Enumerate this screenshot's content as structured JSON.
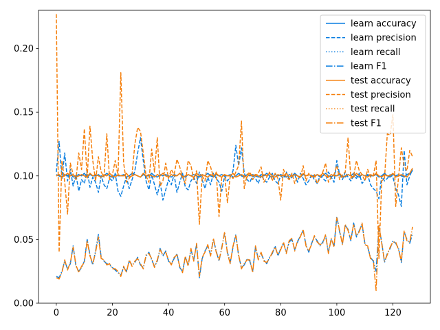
{
  "chart_data": {
    "type": "line",
    "title": "",
    "xlabel": "",
    "ylabel": "",
    "xlim": [
      -6.35,
      133.35
    ],
    "ylim": [
      0,
      0.23
    ],
    "x_ticks": [
      0,
      20,
      40,
      60,
      80,
      100,
      120
    ],
    "y_ticks": [
      0.0,
      0.05,
      0.1,
      0.15,
      0.2
    ],
    "x_tick_labels": [
      "0",
      "20",
      "40",
      "60",
      "80",
      "100",
      "120"
    ],
    "y_tick_labels": [
      "0.00",
      "0.05",
      "0.10",
      "0.15",
      "0.20"
    ],
    "grid": false,
    "legend_position": "top-right",
    "x": [
      0,
      1,
      2,
      3,
      4,
      5,
      6,
      7,
      8,
      9,
      10,
      11,
      12,
      13,
      14,
      15,
      16,
      17,
      18,
      19,
      20,
      21,
      22,
      23,
      24,
      25,
      26,
      27,
      28,
      29,
      30,
      31,
      32,
      33,
      34,
      35,
      36,
      37,
      38,
      39,
      40,
      41,
      42,
      43,
      44,
      45,
      46,
      47,
      48,
      49,
      50,
      51,
      52,
      53,
      54,
      55,
      56,
      57,
      58,
      59,
      60,
      61,
      62,
      63,
      64,
      65,
      66,
      67,
      68,
      69,
      70,
      71,
      72,
      73,
      74,
      75,
      76,
      77,
      78,
      79,
      80,
      81,
      82,
      83,
      84,
      85,
      86,
      87,
      88,
      89,
      90,
      91,
      92,
      93,
      94,
      95,
      96,
      97,
      98,
      99,
      100,
      101,
      102,
      103,
      104,
      105,
      106,
      107,
      108,
      109,
      110,
      111,
      112,
      113,
      114,
      115,
      116,
      117,
      118,
      119,
      120,
      121,
      122,
      123,
      124,
      125,
      126,
      127
    ],
    "series": [
      {
        "name": "learn accuracy",
        "color": "#0a7ee0",
        "dash": "solid",
        "values": [
          0.101,
          0.1,
          0.099,
          0.101,
          0.1,
          0.102,
          0.099,
          0.1,
          0.101,
          0.1,
          0.102,
          0.099,
          0.101,
          0.1,
          0.1,
          0.101,
          0.099,
          0.1,
          0.102,
          0.1,
          0.099,
          0.101,
          0.1,
          0.1,
          0.101,
          0.099,
          0.1,
          0.102,
          0.101,
          0.1,
          0.099,
          0.101,
          0.1,
          0.1,
          0.102,
          0.1,
          0.099,
          0.101,
          0.1,
          0.101,
          0.1,
          0.099,
          0.101,
          0.1,
          0.102,
          0.1,
          0.099,
          0.101,
          0.1,
          0.101,
          0.1,
          0.099,
          0.101,
          0.1,
          0.102,
          0.1,
          0.099,
          0.101,
          0.1,
          0.101,
          0.1,
          0.1,
          0.101,
          0.099,
          0.1,
          0.102,
          0.1,
          0.099,
          0.101,
          0.1,
          0.101,
          0.1,
          0.099,
          0.101,
          0.1,
          0.102,
          0.1,
          0.099,
          0.101,
          0.1,
          0.101,
          0.1,
          0.099,
          0.101,
          0.1,
          0.102,
          0.1,
          0.099,
          0.101,
          0.1,
          0.101,
          0.1,
          0.1,
          0.101,
          0.099,
          0.1,
          0.102,
          0.1,
          0.099,
          0.101,
          0.1,
          0.101,
          0.1,
          0.099,
          0.101,
          0.1,
          0.102,
          0.1,
          0.099,
          0.101,
          0.1,
          0.101,
          0.1,
          0.1,
          0.101,
          0.099,
          0.1,
          0.102,
          0.1,
          0.099,
          0.101,
          0.1,
          0.101,
          0.1,
          0.099,
          0.101,
          0.102,
          0.104
        ]
      },
      {
        "name": "learn precision",
        "color": "#0a7ee0",
        "dash": "dashed",
        "values": [
          0.103,
          0.127,
          0.098,
          0.118,
          0.096,
          0.105,
          0.092,
          0.101,
          0.088,
          0.097,
          0.094,
          0.104,
          0.091,
          0.099,
          0.095,
          0.087,
          0.1,
          0.093,
          0.09,
          0.098,
          0.096,
          0.102,
          0.088,
          0.084,
          0.092,
          0.099,
          0.09,
          0.097,
          0.104,
          0.118,
          0.13,
          0.112,
          0.096,
          0.089,
          0.101,
          0.093,
          0.085,
          0.095,
          0.081,
          0.089,
          0.097,
          0.093,
          0.101,
          0.087,
          0.095,
          0.102,
          0.091,
          0.089,
          0.096,
          0.099,
          0.094,
          0.103,
          0.097,
          0.09,
          0.099,
          0.093,
          0.102,
          0.098,
          0.095,
          0.088,
          0.1,
          0.096,
          0.099,
          0.104,
          0.124,
          0.108,
          0.122,
          0.102,
          0.097,
          0.095,
          0.1,
          0.098,
          0.094,
          0.101,
          0.097,
          0.095,
          0.099,
          0.102,
          0.096,
          0.094,
          0.1,
          0.098,
          0.103,
          0.097,
          0.099,
          0.101,
          0.095,
          0.102,
          0.098,
          0.093,
          0.096,
          0.101,
          0.097,
          0.094,
          0.1,
          0.098,
          0.096,
          0.103,
          0.099,
          0.095,
          0.112,
          0.101,
          0.097,
          0.103,
          0.099,
          0.096,
          0.1,
          0.098,
          0.102,
          0.094,
          0.097,
          0.101,
          0.093,
          0.09,
          0.088,
          0.082,
          0.1,
          0.096,
          0.098,
          0.101,
          0.099,
          0.09,
          0.085,
          0.076,
          0.12,
          0.093,
          0.1,
          0.105
        ]
      },
      {
        "name": "learn recall",
        "color": "#0a7ee0",
        "dash": "dotted",
        "values": [
          0.101,
          0.1,
          0.099,
          0.101,
          0.1,
          0.102,
          0.099,
          0.1,
          0.101,
          0.1,
          0.102,
          0.099,
          0.101,
          0.1,
          0.1,
          0.101,
          0.099,
          0.1,
          0.102,
          0.1,
          0.099,
          0.101,
          0.1,
          0.1,
          0.101,
          0.099,
          0.1,
          0.102,
          0.101,
          0.1,
          0.099,
          0.101,
          0.1,
          0.1,
          0.102,
          0.1,
          0.099,
          0.101,
          0.1,
          0.101,
          0.1,
          0.099,
          0.101,
          0.1,
          0.102,
          0.1,
          0.099,
          0.101,
          0.1,
          0.101,
          0.1,
          0.099,
          0.101,
          0.1,
          0.102,
          0.1,
          0.099,
          0.101,
          0.1,
          0.101,
          0.1,
          0.1,
          0.101,
          0.099,
          0.1,
          0.102,
          0.1,
          0.099,
          0.101,
          0.1,
          0.101,
          0.1,
          0.099,
          0.101,
          0.1,
          0.102,
          0.1,
          0.099,
          0.101,
          0.1,
          0.101,
          0.1,
          0.099,
          0.101,
          0.1,
          0.102,
          0.1,
          0.099,
          0.101,
          0.1,
          0.101,
          0.1,
          0.1,
          0.101,
          0.099,
          0.1,
          0.102,
          0.1,
          0.099,
          0.101,
          0.1,
          0.101,
          0.1,
          0.099,
          0.101,
          0.1,
          0.102,
          0.1,
          0.099,
          0.101,
          0.1,
          0.101,
          0.1,
          0.1,
          0.101,
          0.099,
          0.1,
          0.102,
          0.1,
          0.099,
          0.101,
          0.1,
          0.101,
          0.1,
          0.099,
          0.101,
          0.102,
          0.104
        ]
      },
      {
        "name": "learn F1",
        "color": "#0a7ee0",
        "dash": "dashdot",
        "values": [
          0.021,
          0.02,
          0.025,
          0.033,
          0.027,
          0.031,
          0.045,
          0.029,
          0.025,
          0.028,
          0.033,
          0.05,
          0.038,
          0.03,
          0.041,
          0.054,
          0.036,
          0.033,
          0.031,
          0.03,
          0.028,
          0.026,
          0.024,
          0.022,
          0.028,
          0.025,
          0.033,
          0.03,
          0.032,
          0.036,
          0.03,
          0.028,
          0.037,
          0.04,
          0.034,
          0.029,
          0.033,
          0.043,
          0.037,
          0.041,
          0.033,
          0.031,
          0.035,
          0.039,
          0.028,
          0.025,
          0.036,
          0.03,
          0.042,
          0.034,
          0.046,
          0.02,
          0.035,
          0.041,
          0.045,
          0.038,
          0.05,
          0.041,
          0.033,
          0.044,
          0.055,
          0.04,
          0.032,
          0.044,
          0.054,
          0.037,
          0.028,
          0.03,
          0.035,
          0.033,
          0.025,
          0.044,
          0.035,
          0.039,
          0.034,
          0.031,
          0.036,
          0.039,
          0.045,
          0.037,
          0.043,
          0.047,
          0.04,
          0.048,
          0.05,
          0.042,
          0.048,
          0.053,
          0.057,
          0.046,
          0.04,
          0.047,
          0.052,
          0.049,
          0.045,
          0.048,
          0.053,
          0.04,
          0.05,
          0.045,
          0.068,
          0.056,
          0.047,
          0.061,
          0.058,
          0.049,
          0.063,
          0.052,
          0.057,
          0.062,
          0.047,
          0.044,
          0.036,
          0.033,
          0.025,
          0.06,
          0.048,
          0.032,
          0.039,
          0.043,
          0.049,
          0.047,
          0.043,
          0.032,
          0.056,
          0.05,
          0.047,
          0.055
        ]
      },
      {
        "name": "test accuracy",
        "color": "#f57f0b",
        "dash": "solid",
        "values": [
          0.1,
          0.101,
          0.099,
          0.1,
          0.102,
          0.1,
          0.101,
          0.099,
          0.1,
          0.101,
          0.1,
          0.099,
          0.102,
          0.1,
          0.101,
          0.1,
          0.099,
          0.101,
          0.1,
          0.102,
          0.1,
          0.099,
          0.101,
          0.1,
          0.1,
          0.102,
          0.099,
          0.1,
          0.101,
          0.1,
          0.099,
          0.102,
          0.1,
          0.101,
          0.1,
          0.099,
          0.101,
          0.1,
          0.102,
          0.1,
          0.099,
          0.101,
          0.1,
          0.1,
          0.102,
          0.099,
          0.1,
          0.101,
          0.1,
          0.099,
          0.102,
          0.1,
          0.101,
          0.1,
          0.099,
          0.101,
          0.1,
          0.102,
          0.1,
          0.099,
          0.101,
          0.1,
          0.1,
          0.102,
          0.099,
          0.1,
          0.101,
          0.1,
          0.099,
          0.102,
          0.1,
          0.101,
          0.1,
          0.099,
          0.101,
          0.1,
          0.102,
          0.1,
          0.099,
          0.101,
          0.1,
          0.1,
          0.102,
          0.099,
          0.1,
          0.101,
          0.1,
          0.099,
          0.102,
          0.1,
          0.101,
          0.1,
          0.099,
          0.101,
          0.1,
          0.102,
          0.1,
          0.099,
          0.101,
          0.1,
          0.1,
          0.102,
          0.099,
          0.1,
          0.101,
          0.1,
          0.099,
          0.102,
          0.1,
          0.101,
          0.1,
          0.099,
          0.101,
          0.1,
          0.102,
          0.1,
          0.099,
          0.101,
          0.1,
          0.1,
          0.102,
          0.099,
          0.1,
          0.101,
          0.1,
          0.099,
          0.102,
          0.106
        ]
      },
      {
        "name": "test precision",
        "color": "#f57f0b",
        "dash": "dashed",
        "values": [
          0.227,
          0.04,
          0.112,
          0.095,
          0.07,
          0.11,
          0.101,
          0.097,
          0.118,
          0.105,
          0.137,
          0.098,
          0.139,
          0.112,
          0.096,
          0.115,
          0.103,
          0.099,
          0.133,
          0.097,
          0.101,
          0.112,
          0.1,
          0.181,
          0.11,
          0.095,
          0.098,
          0.101,
          0.125,
          0.138,
          0.135,
          0.118,
          0.1,
          0.095,
          0.121,
          0.103,
          0.13,
          0.092,
          0.096,
          0.11,
          0.098,
          0.105,
          0.101,
          0.113,
          0.107,
          0.099,
          0.094,
          0.112,
          0.108,
          0.097,
          0.104,
          0.062,
          0.1,
          0.096,
          0.112,
          0.107,
          0.099,
          0.103,
          0.068,
          0.1,
          0.101,
          0.079,
          0.1,
          0.098,
          0.103,
          0.108,
          0.143,
          0.09,
          0.101,
          0.103,
          0.097,
          0.1,
          0.102,
          0.107,
          0.095,
          0.099,
          0.103,
          0.096,
          0.102,
          0.098,
          0.081,
          0.105,
          0.099,
          0.097,
          0.102,
          0.094,
          0.1,
          0.098,
          0.108,
          0.096,
          0.102,
          0.099,
          0.101,
          0.094,
          0.098,
          0.103,
          0.11,
          0.095,
          0.099,
          0.101,
          0.108,
          0.097,
          0.101,
          0.103,
          0.13,
          0.098,
          0.1,
          0.112,
          0.104,
          0.101,
          0.096,
          0.105,
          0.099,
          0.1,
          0.112,
          0.035,
          0.096,
          0.098,
          0.133,
          0.132,
          0.148,
          0.076,
          0.099,
          0.122,
          0.108,
          0.104,
          0.12,
          0.115
        ]
      },
      {
        "name": "test recall",
        "color": "#f57f0b",
        "dash": "dotted",
        "values": [
          0.1,
          0.101,
          0.099,
          0.1,
          0.102,
          0.1,
          0.101,
          0.099,
          0.1,
          0.101,
          0.1,
          0.099,
          0.102,
          0.1,
          0.101,
          0.1,
          0.099,
          0.101,
          0.1,
          0.102,
          0.1,
          0.099,
          0.101,
          0.1,
          0.1,
          0.102,
          0.099,
          0.1,
          0.101,
          0.1,
          0.099,
          0.102,
          0.1,
          0.101,
          0.1,
          0.099,
          0.101,
          0.1,
          0.102,
          0.1,
          0.099,
          0.101,
          0.1,
          0.1,
          0.102,
          0.099,
          0.1,
          0.101,
          0.1,
          0.099,
          0.102,
          0.1,
          0.101,
          0.1,
          0.099,
          0.101,
          0.1,
          0.102,
          0.1,
          0.099,
          0.101,
          0.1,
          0.1,
          0.102,
          0.099,
          0.1,
          0.101,
          0.1,
          0.099,
          0.102,
          0.1,
          0.101,
          0.1,
          0.099,
          0.101,
          0.1,
          0.102,
          0.1,
          0.099,
          0.101,
          0.1,
          0.1,
          0.102,
          0.099,
          0.1,
          0.101,
          0.1,
          0.099,
          0.102,
          0.1,
          0.101,
          0.1,
          0.099,
          0.101,
          0.1,
          0.102,
          0.1,
          0.099,
          0.101,
          0.1,
          0.1,
          0.102,
          0.099,
          0.1,
          0.101,
          0.1,
          0.099,
          0.102,
          0.1,
          0.101,
          0.1,
          0.099,
          0.101,
          0.1,
          0.102,
          0.1,
          0.099,
          0.101,
          0.1,
          0.1,
          0.102,
          0.099,
          0.1,
          0.101,
          0.1,
          0.099,
          0.102,
          0.106
        ]
      },
      {
        "name": "test F1",
        "color": "#f57f0b",
        "dash": "dashdot",
        "values": [
          0.02,
          0.019,
          0.024,
          0.034,
          0.026,
          0.032,
          0.044,
          0.03,
          0.024,
          0.029,
          0.032,
          0.049,
          0.037,
          0.031,
          0.04,
          0.052,
          0.035,
          0.034,
          0.03,
          0.031,
          0.027,
          0.027,
          0.025,
          0.021,
          0.029,
          0.024,
          0.034,
          0.029,
          0.033,
          0.035,
          0.031,
          0.027,
          0.038,
          0.039,
          0.035,
          0.028,
          0.034,
          0.042,
          0.038,
          0.04,
          0.034,
          0.03,
          0.036,
          0.038,
          0.029,
          0.024,
          0.037,
          0.029,
          0.043,
          0.033,
          0.047,
          0.021,
          0.036,
          0.04,
          0.046,
          0.037,
          0.051,
          0.04,
          0.034,
          0.043,
          0.056,
          0.039,
          0.031,
          0.045,
          0.053,
          0.038,
          0.027,
          0.031,
          0.034,
          0.034,
          0.024,
          0.045,
          0.034,
          0.04,
          0.033,
          0.032,
          0.035,
          0.04,
          0.044,
          0.038,
          0.042,
          0.048,
          0.039,
          0.049,
          0.051,
          0.041,
          0.049,
          0.052,
          0.058,
          0.045,
          0.041,
          0.046,
          0.053,
          0.048,
          0.046,
          0.047,
          0.054,
          0.039,
          0.051,
          0.044,
          0.067,
          0.057,
          0.046,
          0.062,
          0.057,
          0.05,
          0.062,
          0.053,
          0.056,
          0.063,
          0.046,
          0.045,
          0.035,
          0.034,
          0.01,
          0.061,
          0.047,
          0.033,
          0.038,
          0.044,
          0.048,
          0.048,
          0.042,
          0.033,
          0.057,
          0.049,
          0.048,
          0.06
        ]
      }
    ]
  }
}
